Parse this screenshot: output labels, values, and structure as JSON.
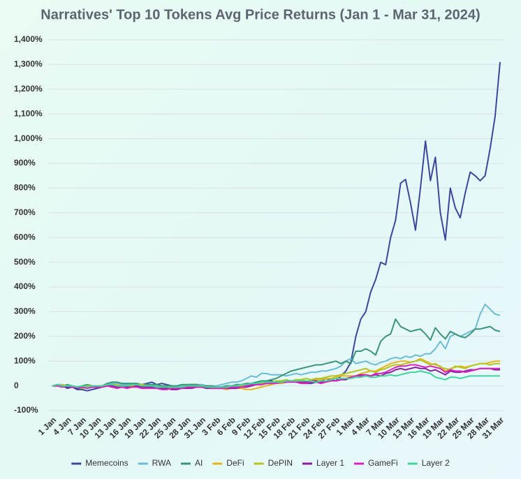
{
  "chart_data": {
    "type": "line",
    "title": "Narratives' Top 10 Tokens Avg Price Returns (Jan 1 - Mar 31, 2024)",
    "categories": [
      "1 Jan",
      null,
      null,
      "4 Jan",
      null,
      null,
      "7 Jan",
      null,
      null,
      "10 Jan",
      null,
      null,
      "13 Jan",
      null,
      null,
      "16 Jan",
      null,
      null,
      "19 Jan",
      null,
      null,
      "22 Jan",
      null,
      null,
      "25 Jan",
      null,
      null,
      "28 Jan",
      null,
      null,
      "31 Jan",
      null,
      null,
      "3 Feb",
      null,
      null,
      "6 Feb",
      null,
      null,
      "9 Feb",
      null,
      null,
      "12 Feb",
      null,
      null,
      "15 Feb",
      null,
      null,
      "18 Feb",
      null,
      null,
      "21 Feb",
      null,
      null,
      "24 Feb",
      null,
      null,
      "27 Feb",
      null,
      null,
      "1 Mar",
      null,
      null,
      "4 Mar",
      null,
      null,
      "7 Mar",
      null,
      null,
      "10 Mar",
      null,
      null,
      "13 Mar",
      null,
      null,
      "16 Mar",
      null,
      null,
      "19 Mar",
      null,
      null,
      "22 Mar",
      null,
      null,
      "25 Mar",
      null,
      null,
      "28 Mar",
      null,
      null,
      "31 Mar"
    ],
    "series": [
      {
        "name": "Memecoins",
        "color": "#3b4799",
        "values": [
          0,
          5,
          0,
          -10,
          -5,
          -15,
          -15,
          -20,
          -15,
          -10,
          -5,
          0,
          5,
          0,
          5,
          0,
          -5,
          0,
          5,
          10,
          15,
          5,
          10,
          5,
          0,
          -5,
          0,
          0,
          5,
          5,
          0,
          0,
          -5,
          -5,
          -5,
          0,
          0,
          0,
          0,
          5,
          10,
          10,
          15,
          15,
          20,
          15,
          10,
          15,
          20,
          15,
          20,
          10,
          10,
          15,
          20,
          30,
          25,
          20,
          40,
          60,
          95,
          200,
          270,
          300,
          380,
          430,
          500,
          490,
          600,
          670,
          820,
          835,
          740,
          630,
          800,
          990,
          830,
          925,
          700,
          590,
          800,
          720,
          680,
          780,
          865,
          850,
          830,
          850,
          960,
          1090,
          1310
        ]
      },
      {
        "name": "RWA",
        "color": "#6bbcd4",
        "values": [
          0,
          5,
          5,
          0,
          0,
          -5,
          -5,
          0,
          -5,
          0,
          0,
          5,
          10,
          10,
          5,
          5,
          5,
          5,
          5,
          5,
          5,
          0,
          0,
          0,
          -5,
          -5,
          0,
          5,
          5,
          5,
          5,
          0,
          0,
          0,
          5,
          10,
          15,
          15,
          20,
          30,
          40,
          35,
          50,
          50,
          45,
          45,
          45,
          40,
          45,
          50,
          45,
          50,
          55,
          55,
          60,
          60,
          65,
          70,
          80,
          100,
          110,
          90,
          95,
          100,
          90,
          85,
          95,
          100,
          110,
          115,
          110,
          120,
          115,
          125,
          120,
          130,
          130,
          150,
          180,
          150,
          200,
          210,
          200,
          210,
          220,
          230,
          290,
          330,
          310,
          290,
          285
        ]
      },
      {
        "name": "AI",
        "color": "#3a967a",
        "values": [
          0,
          5,
          0,
          5,
          0,
          -5,
          0,
          5,
          0,
          -5,
          0,
          10,
          15,
          15,
          10,
          10,
          10,
          10,
          5,
          5,
          5,
          5,
          0,
          0,
          0,
          0,
          5,
          5,
          5,
          5,
          0,
          0,
          0,
          -5,
          -5,
          0,
          0,
          5,
          5,
          10,
          10,
          15,
          20,
          20,
          25,
          30,
          40,
          50,
          60,
          65,
          70,
          75,
          80,
          85,
          85,
          90,
          95,
          100,
          90,
          100,
          90,
          140,
          140,
          150,
          140,
          125,
          180,
          200,
          210,
          270,
          240,
          230,
          220,
          225,
          230,
          210,
          185,
          235,
          210,
          190,
          220,
          210,
          200,
          195,
          210,
          230,
          230,
          235,
          240,
          225,
          220
        ]
      },
      {
        "name": "DeFi",
        "color": "#e6b51e",
        "values": [
          0,
          0,
          5,
          0,
          0,
          -5,
          -5,
          0,
          0,
          -5,
          0,
          0,
          5,
          5,
          0,
          0,
          0,
          5,
          5,
          0,
          0,
          -5,
          -5,
          -5,
          -10,
          -10,
          -5,
          -5,
          0,
          0,
          0,
          -5,
          -5,
          -10,
          -10,
          -15,
          -10,
          -10,
          -10,
          -15,
          -15,
          -10,
          -5,
          0,
          5,
          10,
          10,
          15,
          20,
          20,
          25,
          20,
          20,
          25,
          25,
          30,
          30,
          35,
          40,
          40,
          40,
          40,
          50,
          55,
          60,
          60,
          70,
          80,
          90,
          95,
          100,
          100,
          95,
          100,
          110,
          100,
          90,
          85,
          80,
          60,
          70,
          75,
          80,
          75,
          80,
          85,
          90,
          90,
          95,
          100,
          100
        ]
      },
      {
        "name": "DePIN",
        "color": "#b5c41f",
        "values": [
          0,
          5,
          0,
          0,
          -5,
          -5,
          -10,
          -5,
          0,
          0,
          0,
          5,
          5,
          0,
          0,
          0,
          0,
          5,
          0,
          0,
          -5,
          -5,
          -5,
          -10,
          -10,
          -10,
          -5,
          0,
          0,
          0,
          -5,
          -5,
          -5,
          -5,
          -10,
          -10,
          -5,
          -5,
          0,
          0,
          5,
          5,
          10,
          15,
          15,
          20,
          20,
          25,
          20,
          25,
          25,
          30,
          25,
          30,
          30,
          35,
          40,
          40,
          45,
          50,
          55,
          60,
          65,
          70,
          60,
          55,
          65,
          70,
          80,
          85,
          85,
          90,
          95,
          100,
          105,
          95,
          85,
          90,
          75,
          70,
          65,
          80,
          75,
          70,
          80,
          85,
          90,
          90,
          85,
          90,
          90
        ]
      },
      {
        "name": "Layer 1",
        "color": "#8a1f9e",
        "values": [
          0,
          0,
          0,
          -5,
          -5,
          -10,
          -5,
          -10,
          -5,
          -5,
          -5,
          0,
          0,
          -5,
          0,
          -5,
          -5,
          0,
          -5,
          -5,
          -5,
          -10,
          -10,
          -10,
          -15,
          -15,
          -10,
          -10,
          -10,
          -5,
          -5,
          -10,
          -10,
          -10,
          -10,
          -10,
          -10,
          -10,
          -5,
          -5,
          0,
          5,
          5,
          10,
          10,
          15,
          15,
          15,
          20,
          20,
          15,
          15,
          20,
          20,
          15,
          20,
          20,
          20,
          25,
          25,
          35,
          40,
          45,
          45,
          40,
          45,
          40,
          50,
          55,
          65,
          70,
          65,
          70,
          75,
          70,
          70,
          60,
          65,
          55,
          45,
          60,
          55,
          55,
          60,
          65,
          65,
          70,
          70,
          70,
          65,
          65
        ]
      },
      {
        "name": "GameFi",
        "color": "#dd22c0",
        "values": [
          0,
          0,
          -5,
          0,
          -5,
          -5,
          -5,
          -10,
          -5,
          -5,
          -5,
          0,
          -5,
          -10,
          -5,
          -10,
          -5,
          -5,
          -10,
          -10,
          -10,
          -10,
          -15,
          -15,
          -10,
          -10,
          -10,
          -5,
          -5,
          -5,
          -5,
          -5,
          -10,
          -10,
          -10,
          -10,
          -5,
          -5,
          -5,
          0,
          5,
          5,
          5,
          10,
          10,
          10,
          15,
          15,
          15,
          15,
          10,
          10,
          15,
          15,
          10,
          15,
          20,
          20,
          25,
          30,
          35,
          40,
          40,
          45,
          40,
          50,
          50,
          55,
          65,
          75,
          80,
          80,
          85,
          85,
          80,
          75,
          80,
          75,
          70,
          55,
          65,
          60,
          60,
          55,
          60,
          65,
          70,
          70,
          70,
          70,
          70
        ]
      },
      {
        "name": "Layer 2",
        "color": "#3fd69e",
        "values": [
          0,
          5,
          0,
          0,
          0,
          -5,
          0,
          -5,
          0,
          0,
          0,
          5,
          5,
          0,
          0,
          0,
          5,
          5,
          0,
          0,
          0,
          -5,
          -5,
          -5,
          -5,
          -5,
          -5,
          0,
          0,
          0,
          0,
          -5,
          -5,
          -5,
          -5,
          -5,
          0,
          0,
          5,
          5,
          10,
          10,
          15,
          15,
          15,
          15,
          15,
          20,
          20,
          20,
          20,
          20,
          20,
          15,
          20,
          20,
          25,
          30,
          30,
          30,
          30,
          35,
          35,
          40,
          35,
          35,
          40,
          40,
          45,
          40,
          45,
          50,
          55,
          55,
          60,
          55,
          50,
          35,
          30,
          25,
          35,
          35,
          30,
          35,
          40,
          40,
          40,
          40,
          40,
          40,
          40
        ]
      }
    ],
    "ylim": [
      -100,
      1400
    ],
    "yticks": [
      {
        "value": -100,
        "label": "-100%"
      },
      0,
      {
        "value": 100,
        "label": "100%"
      },
      {
        "value": 200,
        "label": "200%"
      },
      {
        "value": 300,
        "label": "300%"
      },
      {
        "value": 400,
        "label": "400%"
      },
      {
        "value": 500,
        "label": "500%"
      },
      {
        "value": 600,
        "label": "600%"
      },
      {
        "value": 700,
        "label": "700%"
      },
      {
        "value": 800,
        "label": "800%"
      },
      {
        "value": 900,
        "label": "900%"
      },
      {
        "value": 1000,
        "label": "1,000%"
      },
      {
        "value": 1100,
        "label": "1,100%"
      },
      {
        "value": 1200,
        "label": "1,200%"
      },
      {
        "value": 1300,
        "label": "1,300%"
      },
      {
        "value": 1400,
        "label": "1,400%"
      }
    ],
    "grid": true,
    "legend": "bottom"
  }
}
